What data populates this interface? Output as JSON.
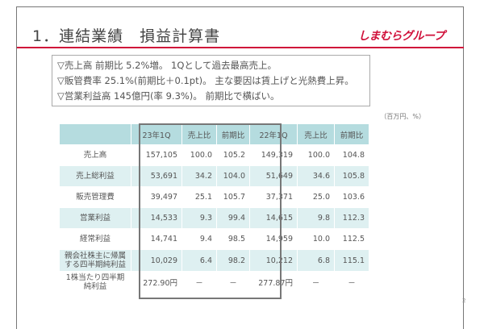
{
  "title": "1．連結業績　損益計算書",
  "logo": "しまむらグループ",
  "summary": [
    "▽売上高 前期比 5.2%増。 1Qとして過去最高売上。",
    "▽販管費率 25.1%(前期比＋0.1pt)。 主な要因は賃上げと光熱費上昇。",
    "▽営業利益高 145億円(率 9.3%)。 前期比で横ばい。"
  ],
  "units": "（百万円、%）",
  "table": {
    "headers": [
      "",
      "23年1Q",
      "売上比",
      "前期比",
      "22年1Q",
      "売上比",
      "前期比"
    ],
    "rows": [
      [
        "売上高",
        "157,105",
        "100.0",
        "105.2",
        "149,319",
        "100.0",
        "104.8"
      ],
      [
        "売上総利益",
        "53,691",
        "34.2",
        "104.0",
        "51,649",
        "34.6",
        "105.8"
      ],
      [
        "販売管理費",
        "39,497",
        "25.1",
        "105.7",
        "37,371",
        "25.0",
        "103.6"
      ],
      [
        "営業利益",
        "14,533",
        "9.3",
        "99.4",
        "14,615",
        "9.8",
        "112.3"
      ],
      [
        "経常利益",
        "14,741",
        "9.4",
        "98.5",
        "14,959",
        "10.0",
        "112.5"
      ],
      [
        "親会社株主に帰属する四半期純利益",
        "10,029",
        "6.4",
        "98.2",
        "10,212",
        "6.8",
        "115.1"
      ],
      [
        "1株当たり四半期純利益",
        "272.90円",
        "－",
        "－",
        "277.87円",
        "－",
        "－"
      ]
    ]
  },
  "page_number": "2",
  "colors": {
    "brand": "#d0103a",
    "header_bg": "#b5dcdf",
    "alt_row_bg": "#def0f1"
  }
}
